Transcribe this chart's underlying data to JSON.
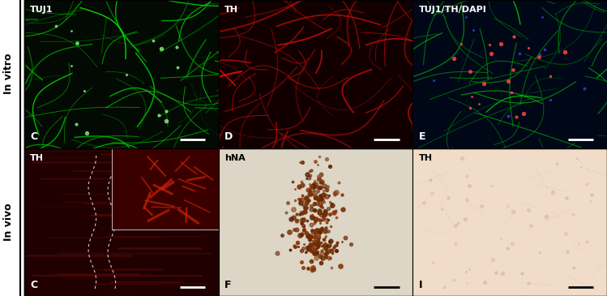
{
  "panels": [
    {
      "row": 0,
      "col": 0,
      "label": "C",
      "marker": "TUJ1",
      "bg_color": "#000000",
      "fill_color": "#00cc00",
      "style": "green_neuro"
    },
    {
      "row": 0,
      "col": 1,
      "label": "D",
      "marker": "TH",
      "bg_color": "#110000",
      "fill_color": "#cc2200",
      "style": "red_neuro"
    },
    {
      "row": 0,
      "col": 2,
      "label": "E",
      "marker": "TUJ1/TH/DAPI",
      "bg_color": "#000022",
      "fill_color": "#00cc00",
      "style": "merge_neuro"
    },
    {
      "row": 1,
      "col": 0,
      "label": "C",
      "marker": "TH",
      "bg_color": "#1a0000",
      "fill_color": "#8b0000",
      "style": "dark_red_track"
    },
    {
      "row": 1,
      "col": 1,
      "label": "F",
      "marker": "hNA",
      "bg_color": "#e8ddd0",
      "fill_color": "#7b3a10",
      "style": "brown_cluster"
    },
    {
      "row": 1,
      "col": 2,
      "label": "I",
      "marker": "TH",
      "bg_color": "#f5e0c8",
      "fill_color": "#c8a080",
      "style": "light_tissue"
    }
  ],
  "row_labels": [
    "In vitro",
    "In vivo"
  ],
  "left_bar_color": "#ffffff",
  "border_color": "#000000",
  "scale_bar_color": "#ffffff",
  "scale_bar_color_dark": "#000000",
  "label_color": "#ffffff",
  "label_color_dark": "#000000",
  "marker_color": "#ffffff",
  "figsize": [
    7.49,
    3.65
  ],
  "dpi": 100
}
